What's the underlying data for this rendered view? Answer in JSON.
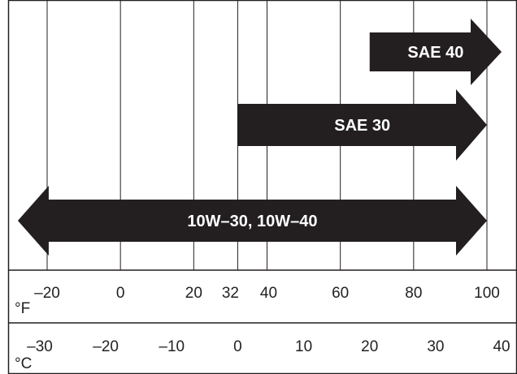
{
  "chart_data": {
    "type": "range",
    "axes": {
      "fahrenheit": {
        "unit": "°F",
        "ticks": [
          "–20",
          "0",
          "20",
          "32",
          "40",
          "60",
          "80",
          "100"
        ],
        "tick_values": [
          -20,
          0,
          20,
          32,
          40,
          60,
          80,
          100
        ]
      },
      "celsius": {
        "unit": "°C",
        "ticks": [
          "–30",
          "–20",
          "–10",
          "0",
          "10",
          "20",
          "30",
          "40"
        ],
        "tick_values": [
          -30,
          -20,
          -10,
          0,
          10,
          20,
          30,
          40
        ]
      }
    },
    "x_range_f": [
      -20,
      100
    ],
    "ranges": [
      {
        "label": "SAE 40",
        "from_f": 68,
        "to_f": 104,
        "open_left": false,
        "open_right": true
      },
      {
        "label": "SAE 30",
        "from_f": 32,
        "to_f": 100,
        "open_left": false,
        "open_right": true
      },
      {
        "label": "10W–30, 10W–40",
        "from_f": -28,
        "to_f": 100,
        "open_left": true,
        "open_right": true
      }
    ],
    "colors": {
      "arrow": "#231f20",
      "arrow_text": "#ffffff",
      "grid": "#231f20"
    }
  }
}
